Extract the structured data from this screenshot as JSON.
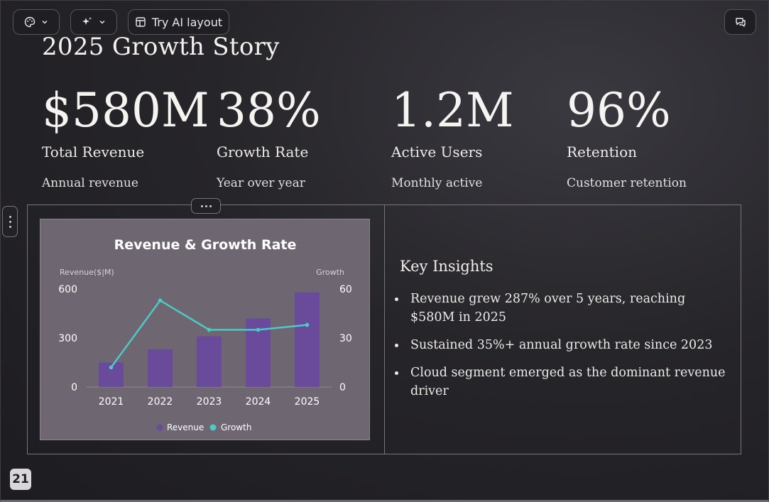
{
  "toolbar": {
    "theme_icon": "palette-icon",
    "ai_icon": "sparkle-icon",
    "ai_layout_label": "Try AI layout",
    "comments_icon": "comments-icon"
  },
  "slide": {
    "title": "2025 Growth Story",
    "stats": [
      {
        "value": "$580M",
        "label": "Total Revenue",
        "sub": "Annual revenue"
      },
      {
        "value": "38%",
        "label": "Growth Rate",
        "sub": "Year over year"
      },
      {
        "value": "1.2M",
        "label": "Active Users",
        "sub": "Monthly active"
      },
      {
        "value": "96%",
        "label": "Retention",
        "sub": "Customer retention"
      }
    ],
    "insights_title": "Key Insights",
    "insights": [
      "Revenue grew 287% over 5 years, reaching $580M in 2025",
      "Sustained 35%+ annual growth rate since 2023",
      "Cloud segment emerged as the dominant revenue driver"
    ],
    "page_number": "21"
  },
  "chart_data": {
    "type": "bar",
    "title": "Revenue & Growth Rate",
    "ylabel": "Revenue($|M)",
    "y2label": "Growth",
    "categories": [
      "2021",
      "2022",
      "2023",
      "2024",
      "2025"
    ],
    "ylim": [
      0,
      600
    ],
    "y2lim": [
      0,
      60
    ],
    "yticks": [
      0,
      300,
      600
    ],
    "y2ticks": [
      0,
      30,
      60
    ],
    "series": [
      {
        "name": "Revenue",
        "type": "bar",
        "axis": "left",
        "color": "#6a4a9a",
        "values": [
          150,
          230,
          310,
          420,
          580
        ]
      },
      {
        "name": "Growth",
        "type": "line",
        "axis": "right",
        "color": "#4dc9c6",
        "values": [
          12,
          53,
          35,
          35,
          38
        ]
      }
    ],
    "legend": "bottom",
    "grid": false
  }
}
